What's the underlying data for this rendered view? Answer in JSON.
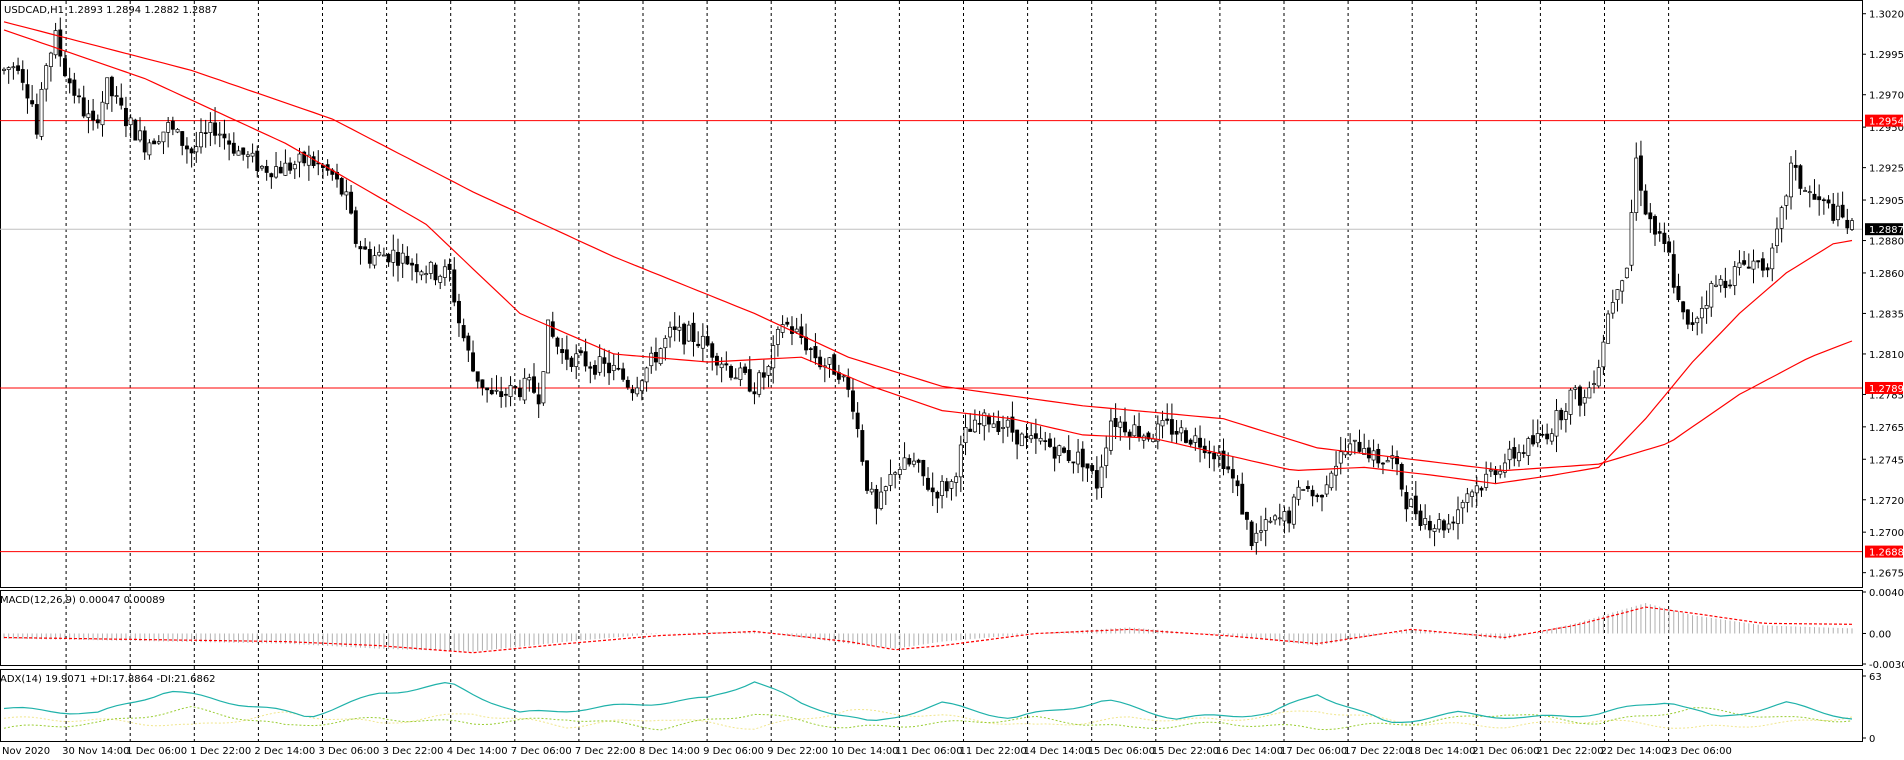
{
  "window": {
    "symbol_label": "USDCAD,H1",
    "ohlc_label": "1.2893 1.2894 1.2882 1.2887"
  },
  "indicators": {
    "macd_label": "MACD(12,26,9) 0.00047 0.00089",
    "adx_label": "ADX(14) 19.9071 +DI:17.8864 -DI:21.6862"
  },
  "colors": {
    "background": "#ffffff",
    "candles": "#000000",
    "moving_averages": "#ff0000",
    "horizontal_levels": "#ff0000",
    "current_price_tag": "#000000",
    "macd_histogram": "#b0b0b0",
    "macd_signal": "#ff0000",
    "adx_main": "#20b2aa",
    "adx_plus_di": "#9acd32",
    "adx_minus_di": "#f0e68c"
  },
  "chart_data": [
    {
      "type": "candlestick",
      "title": "USDCAD,H1",
      "y_ticks": [
        "1.3020",
        "1.2995",
        "1.2970",
        "1.2950",
        "1.2925",
        "1.2905",
        "1.2880",
        "1.2860",
        "1.2835",
        "1.2810",
        "1.2785",
        "1.2765",
        "1.2745",
        "1.2720",
        "1.2700",
        "1.2675"
      ],
      "ylim": [
        1.2668,
        1.3026
      ],
      "x_ticks": [
        "Nov 2020",
        "30 Nov 14:00",
        "1 Dec 06:00",
        "1 Dec 22:00",
        "2 Dec 14:00",
        "3 Dec 06:00",
        "3 Dec 22:00",
        "4 Dec 14:00",
        "7 Dec 06:00",
        "7 Dec 22:00",
        "8 Dec 14:00",
        "9 Dec 06:00",
        "9 Dec 22:00",
        "10 Dec 14:00",
        "11 Dec 06:00",
        "11 Dec 22:00",
        "14 Dec 14:00",
        "15 Dec 06:00",
        "15 Dec 22:00",
        "16 Dec 14:00",
        "17 Dec 06:00",
        "17 Dec 22:00",
        "18 Dec 14:00",
        "21 Dec 06:00",
        "21 Dec 22:00",
        "22 Dec 14:00",
        "23 Dec 06:00"
      ],
      "horizontal_levels": [
        {
          "label": "1.2954",
          "value": 1.2954
        },
        {
          "label": "1.2789",
          "value": 1.2789
        },
        {
          "label": "1.2688",
          "value": 1.2688
        }
      ],
      "current_price": {
        "label": "1.2887",
        "value": 1.2887
      },
      "price_path": [
        [
          0,
          1.2985
        ],
        [
          3,
          1.299
        ],
        [
          6,
          1.2965
        ],
        [
          7,
          1.2945
        ],
        [
          9,
          1.299
        ],
        [
          11,
          1.3005
        ],
        [
          13,
          1.2985
        ],
        [
          16,
          1.2965
        ],
        [
          19,
          1.295
        ],
        [
          22,
          1.2975
        ],
        [
          26,
          1.2955
        ],
        [
          30,
          1.294
        ],
        [
          35,
          1.295
        ],
        [
          40,
          1.2935
        ],
        [
          45,
          1.295
        ],
        [
          50,
          1.2935
        ],
        [
          55,
          1.2925
        ],
        [
          60,
          1.2925
        ],
        [
          65,
          1.293
        ],
        [
          70,
          1.292
        ],
        [
          73,
          1.2905
        ],
        [
          75,
          1.288
        ],
        [
          78,
          1.287
        ],
        [
          83,
          1.2872
        ],
        [
          88,
          1.2865
        ],
        [
          92,
          1.286
        ],
        [
          95,
          1.286
        ],
        [
          97,
          1.283
        ],
        [
          100,
          1.28
        ],
        [
          104,
          1.2783
        ],
        [
          108,
          1.2787
        ],
        [
          112,
          1.279
        ],
        [
          114,
          1.2785
        ],
        [
          116,
          1.2825
        ],
        [
          119,
          1.281
        ],
        [
          124,
          1.2805
        ],
        [
          130,
          1.28
        ],
        [
          134,
          1.279
        ],
        [
          138,
          1.2805
        ],
        [
          142,
          1.2822
        ],
        [
          146,
          1.2822
        ],
        [
          150,
          1.2815
        ],
        [
          155,
          1.28
        ],
        [
          160,
          1.279
        ],
        [
          163,
          1.28
        ],
        [
          166,
          1.283
        ],
        [
          170,
          1.282
        ],
        [
          174,
          1.2805
        ],
        [
          178,
          1.28
        ],
        [
          181,
          1.278
        ],
        [
          184,
          1.273
        ],
        [
          186,
          1.2712
        ],
        [
          190,
          1.274
        ],
        [
          194,
          1.2742
        ],
        [
          198,
          1.2725
        ],
        [
          202,
          1.273
        ],
        [
          205,
          1.276
        ],
        [
          210,
          1.277
        ],
        [
          214,
          1.2765
        ],
        [
          218,
          1.2755
        ],
        [
          222,
          1.2755
        ],
        [
          226,
          1.2748
        ],
        [
          230,
          1.2745
        ],
        [
          233,
          1.273
        ],
        [
          236,
          1.277
        ],
        [
          240,
          1.2765
        ],
        [
          244,
          1.276
        ],
        [
          248,
          1.2765
        ],
        [
          252,
          1.276
        ],
        [
          256,
          1.2755
        ],
        [
          260,
          1.2745
        ],
        [
          263,
          1.2725
        ],
        [
          266,
          1.2695
        ],
        [
          270,
          1.2705
        ],
        [
          274,
          1.271
        ],
        [
          277,
          1.273
        ],
        [
          280,
          1.272
        ],
        [
          283,
          1.274
        ],
        [
          286,
          1.275
        ],
        [
          290,
          1.2755
        ],
        [
          292,
          1.2745
        ],
        [
          296,
          1.2745
        ],
        [
          299,
          1.272
        ],
        [
          302,
          1.271
        ],
        [
          305,
          1.2705
        ],
        [
          308,
          1.2705
        ],
        [
          312,
          1.2725
        ],
        [
          315,
          1.273
        ],
        [
          318,
          1.274
        ],
        [
          322,
          1.2748
        ],
        [
          326,
          1.2755
        ],
        [
          330,
          1.2765
        ],
        [
          334,
          1.2785
        ],
        [
          337,
          1.2782
        ],
        [
          340,
          1.2805
        ],
        [
          342,
          1.2835
        ],
        [
          344,
          1.2855
        ],
        [
          346,
          1.2865
        ],
        [
          348,
          1.293
        ],
        [
          350,
          1.29
        ],
        [
          352,
          1.2885
        ],
        [
          355,
          1.287
        ],
        [
          357,
          1.284
        ],
        [
          359,
          1.2825
        ],
        [
          361,
          1.2835
        ],
        [
          364,
          1.285
        ],
        [
          368,
          1.2858
        ],
        [
          372,
          1.2868
        ],
        [
          375,
          1.2865
        ],
        [
          377,
          1.287
        ],
        [
          379,
          1.2895
        ],
        [
          381,
          1.2925
        ],
        [
          383,
          1.2915
        ],
        [
          386,
          1.2905
        ],
        [
          389,
          1.29
        ],
        [
          392,
          1.2893
        ],
        [
          394,
          1.2887
        ]
      ],
      "ma_fast": [
        [
          0,
          1.301
        ],
        [
          30,
          1.298
        ],
        [
          60,
          1.294
        ],
        [
          90,
          1.289
        ],
        [
          110,
          1.2835
        ],
        [
          130,
          1.281
        ],
        [
          150,
          1.2805
        ],
        [
          170,
          1.2808
        ],
        [
          185,
          1.279
        ],
        [
          200,
          1.2775
        ],
        [
          215,
          1.277
        ],
        [
          230,
          1.276
        ],
        [
          245,
          1.2758
        ],
        [
          260,
          1.2748
        ],
        [
          275,
          1.2738
        ],
        [
          290,
          1.274
        ],
        [
          305,
          1.2735
        ],
        [
          318,
          1.273
        ],
        [
          330,
          1.2735
        ],
        [
          340,
          1.274
        ],
        [
          350,
          1.277
        ],
        [
          360,
          1.2805
        ],
        [
          370,
          1.2835
        ],
        [
          380,
          1.286
        ],
        [
          390,
          1.2878
        ],
        [
          394,
          1.288
        ]
      ],
      "ma_slow": [
        [
          0,
          1.3015
        ],
        [
          40,
          1.2985
        ],
        [
          70,
          1.2955
        ],
        [
          100,
          1.291
        ],
        [
          130,
          1.287
        ],
        [
          160,
          1.2835
        ],
        [
          180,
          1.2808
        ],
        [
          200,
          1.279
        ],
        [
          230,
          1.2778
        ],
        [
          260,
          1.277
        ],
        [
          280,
          1.2752
        ],
        [
          300,
          1.2745
        ],
        [
          320,
          1.2738
        ],
        [
          340,
          1.2742
        ],
        [
          355,
          1.2755
        ],
        [
          370,
          1.2785
        ],
        [
          385,
          1.2808
        ],
        [
          394,
          1.2818
        ]
      ]
    },
    {
      "type": "bar",
      "title": "MACD(12,26,9) 0.00047 0.00089",
      "y_ticks": [
        "0.00409",
        "0.00",
        "-0.00301"
      ],
      "ylim": [
        -0.00301,
        0.00409
      ],
      "histogram_path": [
        [
          0,
          -0.0005
        ],
        [
          60,
          -0.001
        ],
        [
          80,
          -0.0015
        ],
        [
          100,
          -0.0018
        ],
        [
          120,
          -0.0008
        ],
        [
          140,
          0.0
        ],
        [
          160,
          0.0002
        ],
        [
          180,
          -0.001
        ],
        [
          190,
          -0.0015
        ],
        [
          200,
          -0.0008
        ],
        [
          220,
          0.0
        ],
        [
          240,
          0.0006
        ],
        [
          260,
          -0.0002
        ],
        [
          280,
          -0.0012
        ],
        [
          300,
          0.0004
        ],
        [
          320,
          -0.0006
        ],
        [
          335,
          0.001
        ],
        [
          350,
          0.003
        ],
        [
          360,
          0.0018
        ],
        [
          375,
          0.0008
        ],
        [
          394,
          0.0005
        ]
      ],
      "signal_path": [
        [
          0,
          -0.0004
        ],
        [
          60,
          -0.0008
        ],
        [
          80,
          -0.0012
        ],
        [
          100,
          -0.0019
        ],
        [
          120,
          -0.001
        ],
        [
          140,
          -0.0002
        ],
        [
          160,
          0.0002
        ],
        [
          180,
          -0.0008
        ],
        [
          190,
          -0.0016
        ],
        [
          200,
          -0.0012
        ],
        [
          220,
          0.0
        ],
        [
          240,
          0.0004
        ],
        [
          260,
          -0.0002
        ],
        [
          280,
          -0.001
        ],
        [
          300,
          0.0004
        ],
        [
          320,
          -0.0004
        ],
        [
          335,
          0.0008
        ],
        [
          350,
          0.0026
        ],
        [
          360,
          0.002
        ],
        [
          375,
          0.001
        ],
        [
          394,
          0.0009
        ]
      ]
    },
    {
      "type": "line",
      "title": "ADX(14) 19.9071 +DI:17.8864 -DI:21.6862",
      "y_ticks": [
        "63",
        "0"
      ],
      "ylim": [
        0,
        63
      ],
      "series": [
        {
          "name": "ADX(14)",
          "values_path": [
            [
              0,
              30
            ],
            [
              20,
              25
            ],
            [
              35,
              48
            ],
            [
              50,
              35
            ],
            [
              65,
              22
            ],
            [
              80,
              45
            ],
            [
              95,
              55
            ],
            [
              110,
              25
            ],
            [
              125,
              30
            ],
            [
              150,
              40
            ],
            [
              160,
              58
            ],
            [
              170,
              35
            ],
            [
              185,
              15
            ],
            [
              200,
              35
            ],
            [
              215,
              20
            ],
            [
              235,
              38
            ],
            [
              250,
              20
            ],
            [
              270,
              25
            ],
            [
              280,
              45
            ],
            [
              295,
              15
            ],
            [
              310,
              25
            ],
            [
              325,
              20
            ],
            [
              340,
              25
            ],
            [
              355,
              38
            ],
            [
              365,
              20
            ],
            [
              380,
              35
            ],
            [
              394,
              20
            ]
          ]
        },
        {
          "name": "+DI:17.8864",
          "values_path": [
            [
              0,
              10
            ],
            [
              20,
              15
            ],
            [
              40,
              30
            ],
            [
              60,
              12
            ],
            [
              80,
              20
            ],
            [
              100,
              15
            ],
            [
              120,
              20
            ],
            [
              140,
              10
            ],
            [
              160,
              25
            ],
            [
              180,
              10
            ],
            [
              200,
              15
            ],
            [
              220,
              20
            ],
            [
              240,
              10
            ],
            [
              260,
              15
            ],
            [
              280,
              10
            ],
            [
              300,
              15
            ],
            [
              320,
              25
            ],
            [
              340,
              15
            ],
            [
              360,
              30
            ],
            [
              380,
              20
            ],
            [
              394,
              18
            ]
          ]
        },
        {
          "name": "-DI:21.6862",
          "values_path": [
            [
              0,
              20
            ],
            [
              20,
              18
            ],
            [
              40,
              12
            ],
            [
              60,
              25
            ],
            [
              80,
              15
            ],
            [
              100,
              25
            ],
            [
              120,
              12
            ],
            [
              140,
              20
            ],
            [
              160,
              10
            ],
            [
              180,
              28
            ],
            [
              200,
              22
            ],
            [
              220,
              12
            ],
            [
              240,
              20
            ],
            [
              260,
              18
            ],
            [
              280,
              28
            ],
            [
              300,
              15
            ],
            [
              320,
              12
            ],
            [
              340,
              18
            ],
            [
              360,
              10
            ],
            [
              380,
              15
            ],
            [
              394,
              22
            ]
          ]
        }
      ]
    }
  ]
}
